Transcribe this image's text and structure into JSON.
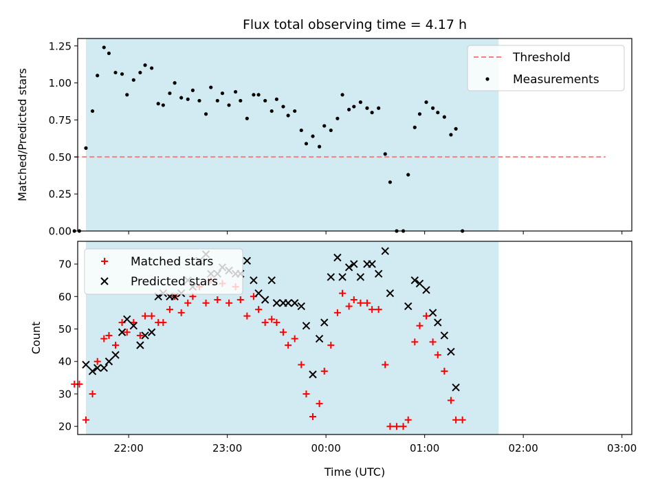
{
  "title": "Flux total observing time = 4.17 h",
  "colors": {
    "shade": "#add8e6",
    "threshold": "#f08080",
    "measure": "#000000",
    "matched": "#ff0000",
    "predicted": "#000000"
  },
  "chart_data": [
    {
      "type": "scatter",
      "ylabel": "Matched/Predicted stars",
      "ylim": [
        0,
        1.3
      ],
      "xlim": [
        "21:29",
        "03:06"
      ],
      "yticks": [
        {
          "v": 0,
          "label": "0.00"
        },
        {
          "v": 0.25,
          "label": "0.25"
        },
        {
          "v": 0.5,
          "label": "0.50"
        },
        {
          "v": 0.75,
          "label": "0.75"
        },
        {
          "v": 1.0,
          "label": "1.00"
        },
        {
          "v": 1.25,
          "label": "1.25"
        }
      ],
      "shaded_interval": [
        "21:34",
        "01:45"
      ],
      "threshold": {
        "label": "Threshold",
        "y": 0.5,
        "x": [
          "21:27",
          "02:50"
        ]
      },
      "legend": {
        "position": "top-right",
        "entries": [
          "Threshold",
          "Measurements"
        ]
      },
      "series": [
        {
          "name": "Measurements",
          "marker": "dot",
          "points": [
            [
              "21:27",
              0
            ],
            [
              "21:30",
              0
            ],
            [
              "21:34",
              0.56
            ],
            [
              "21:38",
              0.81
            ],
            [
              "21:41",
              1.05
            ],
            [
              "21:45",
              1.24
            ],
            [
              "21:48",
              1.2
            ],
            [
              "21:52",
              1.07
            ],
            [
              "21:56",
              1.06
            ],
            [
              "21:59",
              0.92
            ],
            [
              "22:03",
              1.02
            ],
            [
              "22:07",
              1.07
            ],
            [
              "22:10",
              1.12
            ],
            [
              "22:14",
              1.1
            ],
            [
              "22:18",
              0.86
            ],
            [
              "22:21",
              0.85
            ],
            [
              "22:25",
              0.93
            ],
            [
              "22:28",
              1.0
            ],
            [
              "22:32",
              0.9
            ],
            [
              "22:36",
              0.89
            ],
            [
              "22:39",
              0.95
            ],
            [
              "22:43",
              0.88
            ],
            [
              "22:47",
              0.79
            ],
            [
              "22:50",
              0.97
            ],
            [
              "22:54",
              0.88
            ],
            [
              "22:57",
              0.93
            ],
            [
              "23:01",
              0.85
            ],
            [
              "23:05",
              0.94
            ],
            [
              "23:08",
              0.88
            ],
            [
              "23:12",
              0.76
            ],
            [
              "23:16",
              0.92
            ],
            [
              "23:19",
              0.92
            ],
            [
              "23:23",
              0.88
            ],
            [
              "23:27",
              0.81
            ],
            [
              "23:30",
              0.89
            ],
            [
              "23:34",
              0.84
            ],
            [
              "23:37",
              0.78
            ],
            [
              "23:41",
              0.81
            ],
            [
              "23:45",
              0.68
            ],
            [
              "23:48",
              0.59
            ],
            [
              "23:52",
              0.64
            ],
            [
              "23:56",
              0.57
            ],
            [
              "23:59",
              0.71
            ],
            [
              "00:03",
              0.68
            ],
            [
              "00:07",
              0.76
            ],
            [
              "00:10",
              0.92
            ],
            [
              "00:14",
              0.82
            ],
            [
              "00:17",
              0.84
            ],
            [
              "00:21",
              0.87
            ],
            [
              "00:25",
              0.83
            ],
            [
              "00:28",
              0.8
            ],
            [
              "00:32",
              0.83
            ],
            [
              "00:36",
              0.52
            ],
            [
              "00:39",
              0.33
            ],
            [
              "00:43",
              0
            ],
            [
              "00:47",
              0
            ],
            [
              "00:50",
              0.38
            ],
            [
              "00:54",
              0.7
            ],
            [
              "00:57",
              0.79
            ],
            [
              "01:01",
              0.87
            ],
            [
              "01:05",
              0.83
            ],
            [
              "01:08",
              0.8
            ],
            [
              "01:12",
              0.77
            ],
            [
              "01:16",
              0.65
            ],
            [
              "01:19",
              0.69
            ],
            [
              "01:23",
              0
            ]
          ]
        }
      ]
    },
    {
      "type": "scatter",
      "xlabel": "Time (UTC)",
      "ylabel": "Count",
      "ylim": [
        17.5,
        77
      ],
      "xlim": [
        "21:29",
        "03:06"
      ],
      "xticks": [
        "22:00",
        "23:00",
        "00:00",
        "01:00",
        "02:00",
        "03:00"
      ],
      "yticks": [
        20,
        30,
        40,
        50,
        60,
        70
      ],
      "shaded_interval": [
        "21:34",
        "01:45"
      ],
      "legend": {
        "position": "top-left",
        "entries": [
          "Matched stars",
          "Predicted stars"
        ]
      },
      "series": [
        {
          "name": "Matched stars",
          "marker": "plus",
          "points": [
            [
              "21:27",
              33
            ],
            [
              "21:30",
              33
            ],
            [
              "21:34",
              22
            ],
            [
              "21:38",
              30
            ],
            [
              "21:41",
              40
            ],
            [
              "21:45",
              47
            ],
            [
              "21:48",
              48
            ],
            [
              "21:52",
              45
            ],
            [
              "21:56",
              52
            ],
            [
              "21:59",
              49
            ],
            [
              "22:03",
              52
            ],
            [
              "22:07",
              48
            ],
            [
              "22:10",
              54
            ],
            [
              "22:14",
              54
            ],
            [
              "22:18",
              52
            ],
            [
              "22:21",
              52
            ],
            [
              "22:25",
              56
            ],
            [
              "22:28",
              60
            ],
            [
              "22:32",
              55
            ],
            [
              "22:36",
              58
            ],
            [
              "22:39",
              60
            ],
            [
              "22:43",
              63
            ],
            [
              "22:47",
              58
            ],
            [
              "22:50",
              65
            ],
            [
              "22:54",
              59
            ],
            [
              "22:57",
              64
            ],
            [
              "23:01",
              58
            ],
            [
              "23:05",
              63
            ],
            [
              "23:08",
              59
            ],
            [
              "23:12",
              54
            ],
            [
              "23:16",
              60
            ],
            [
              "23:19",
              56
            ],
            [
              "23:23",
              52
            ],
            [
              "23:27",
              53
            ],
            [
              "23:30",
              52
            ],
            [
              "23:34",
              49
            ],
            [
              "23:37",
              45
            ],
            [
              "23:41",
              47
            ],
            [
              "23:45",
              39
            ],
            [
              "23:48",
              30
            ],
            [
              "23:52",
              23
            ],
            [
              "23:56",
              27
            ],
            [
              "23:59",
              37
            ],
            [
              "00:03",
              45
            ],
            [
              "00:07",
              55
            ],
            [
              "00:10",
              61
            ],
            [
              "00:14",
              57
            ],
            [
              "00:17",
              59
            ],
            [
              "00:21",
              58
            ],
            [
              "00:25",
              58
            ],
            [
              "00:28",
              56
            ],
            [
              "00:32",
              56
            ],
            [
              "00:36",
              39
            ],
            [
              "00:39",
              20
            ],
            [
              "00:43",
              20
            ],
            [
              "00:47",
              20
            ],
            [
              "00:50",
              22
            ],
            [
              "00:54",
              46
            ],
            [
              "00:57",
              51
            ],
            [
              "01:01",
              54
            ],
            [
              "01:05",
              46
            ],
            [
              "01:08",
              42
            ],
            [
              "01:12",
              37
            ],
            [
              "01:16",
              28
            ],
            [
              "01:19",
              22
            ],
            [
              "01:23",
              22
            ]
          ]
        },
        {
          "name": "Predicted stars",
          "marker": "cross",
          "points": [
            [
              "21:34",
              39
            ],
            [
              "21:38",
              37
            ],
            [
              "21:41",
              38
            ],
            [
              "21:45",
              38
            ],
            [
              "21:48",
              40
            ],
            [
              "21:52",
              42
            ],
            [
              "21:56",
              49
            ],
            [
              "21:59",
              53
            ],
            [
              "22:03",
              51
            ],
            [
              "22:07",
              45
            ],
            [
              "22:10",
              48
            ],
            [
              "22:14",
              49
            ],
            [
              "22:18",
              60
            ],
            [
              "22:21",
              61
            ],
            [
              "22:25",
              60
            ],
            [
              "22:28",
              60
            ],
            [
              "22:32",
              61
            ],
            [
              "22:36",
              65
            ],
            [
              "22:39",
              63
            ],
            [
              "22:43",
              71
            ],
            [
              "22:47",
              73
            ],
            [
              "22:50",
              67
            ],
            [
              "22:54",
              67
            ],
            [
              "22:57",
              69
            ],
            [
              "23:01",
              68
            ],
            [
              "23:05",
              67
            ],
            [
              "23:08",
              67
            ],
            [
              "23:12",
              71
            ],
            [
              "23:16",
              65
            ],
            [
              "23:19",
              61
            ],
            [
              "23:23",
              59
            ],
            [
              "23:27",
              65
            ],
            [
              "23:30",
              58
            ],
            [
              "23:34",
              58
            ],
            [
              "23:37",
              58
            ],
            [
              "23:41",
              58
            ],
            [
              "23:45",
              57
            ],
            [
              "23:48",
              51
            ],
            [
              "23:52",
              36
            ],
            [
              "23:56",
              47
            ],
            [
              "23:59",
              52
            ],
            [
              "00:03",
              66
            ],
            [
              "00:07",
              72
            ],
            [
              "00:10",
              66
            ],
            [
              "00:14",
              69
            ],
            [
              "00:17",
              70
            ],
            [
              "00:21",
              66
            ],
            [
              "00:25",
              70
            ],
            [
              "00:28",
              70
            ],
            [
              "00:32",
              67
            ],
            [
              "00:36",
              74
            ],
            [
              "00:39",
              61
            ],
            [
              "00:50",
              57
            ],
            [
              "00:54",
              65
            ],
            [
              "00:57",
              64
            ],
            [
              "01:01",
              62
            ],
            [
              "01:05",
              55
            ],
            [
              "01:08",
              52
            ],
            [
              "01:12",
              48
            ],
            [
              "01:16",
              43
            ],
            [
              "01:19",
              32
            ]
          ]
        }
      ]
    }
  ]
}
